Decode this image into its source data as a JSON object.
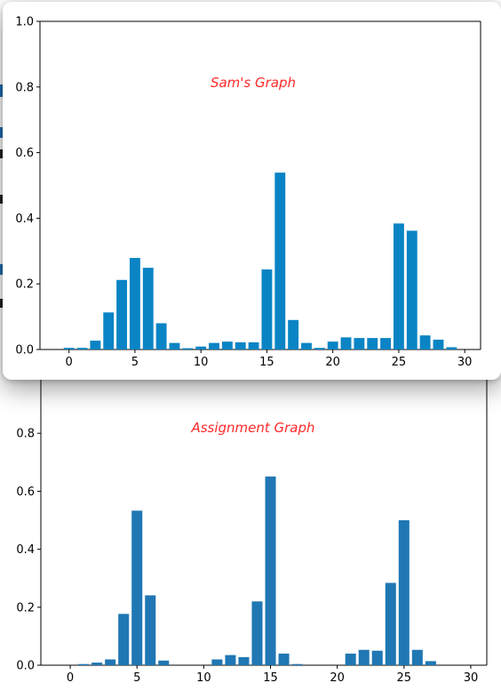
{
  "chart_data": [
    {
      "type": "bar",
      "title": "Assignment Graph",
      "title_color": "#ff2a2a",
      "bar_color": "#1f77b4",
      "xlabel": "",
      "ylabel": "",
      "xlim": [
        -2.2,
        31.2
      ],
      "ylim": [
        0,
        1.0
      ],
      "xticks": [
        "0",
        "5",
        "10",
        "15",
        "20",
        "25",
        "30"
      ],
      "yticks": [
        "0.0",
        "0.2",
        "0.4",
        "0.6",
        "0.8"
      ],
      "x": [
        0,
        1,
        2,
        3,
        4,
        5,
        6,
        7,
        8,
        9,
        10,
        11,
        12,
        13,
        14,
        15,
        16,
        17,
        18,
        19,
        20,
        21,
        22,
        23,
        24,
        25,
        26,
        27,
        28,
        29
      ],
      "values": [
        0.0,
        0.004,
        0.009,
        0.02,
        0.177,
        0.533,
        0.241,
        0.016,
        0.0,
        0.0,
        0.0,
        0.02,
        0.035,
        0.028,
        0.22,
        0.651,
        0.04,
        0.004,
        0.0,
        0.0,
        0.0,
        0.04,
        0.053,
        0.05,
        0.284,
        0.5,
        0.053,
        0.014,
        0.0,
        0.0
      ]
    },
    {
      "type": "bar",
      "title": "Sam's Graph",
      "title_color": "#ff2a2a",
      "bar_color": "#0a84c4",
      "xlabel": "",
      "ylabel": "",
      "xlim": [
        -2.2,
        31.2
      ],
      "ylim": [
        0,
        1.0
      ],
      "xticks": [
        "0",
        "5",
        "10",
        "15",
        "20",
        "25",
        "30"
      ],
      "yticks": [
        "0.0",
        "0.2",
        "0.4",
        "0.6",
        "0.8",
        "1.0"
      ],
      "x": [
        0,
        1,
        2,
        3,
        4,
        5,
        6,
        7,
        8,
        9,
        10,
        11,
        12,
        13,
        14,
        15,
        16,
        17,
        18,
        19,
        20,
        21,
        22,
        23,
        24,
        25,
        26,
        27,
        28,
        29
      ],
      "values": [
        0.005,
        0.005,
        0.027,
        0.113,
        0.212,
        0.279,
        0.249,
        0.08,
        0.02,
        0.004,
        0.009,
        0.02,
        0.024,
        0.022,
        0.022,
        0.244,
        0.539,
        0.09,
        0.02,
        0.005,
        0.024,
        0.037,
        0.035,
        0.035,
        0.035,
        0.384,
        0.362,
        0.043,
        0.03,
        0.007
      ]
    }
  ]
}
